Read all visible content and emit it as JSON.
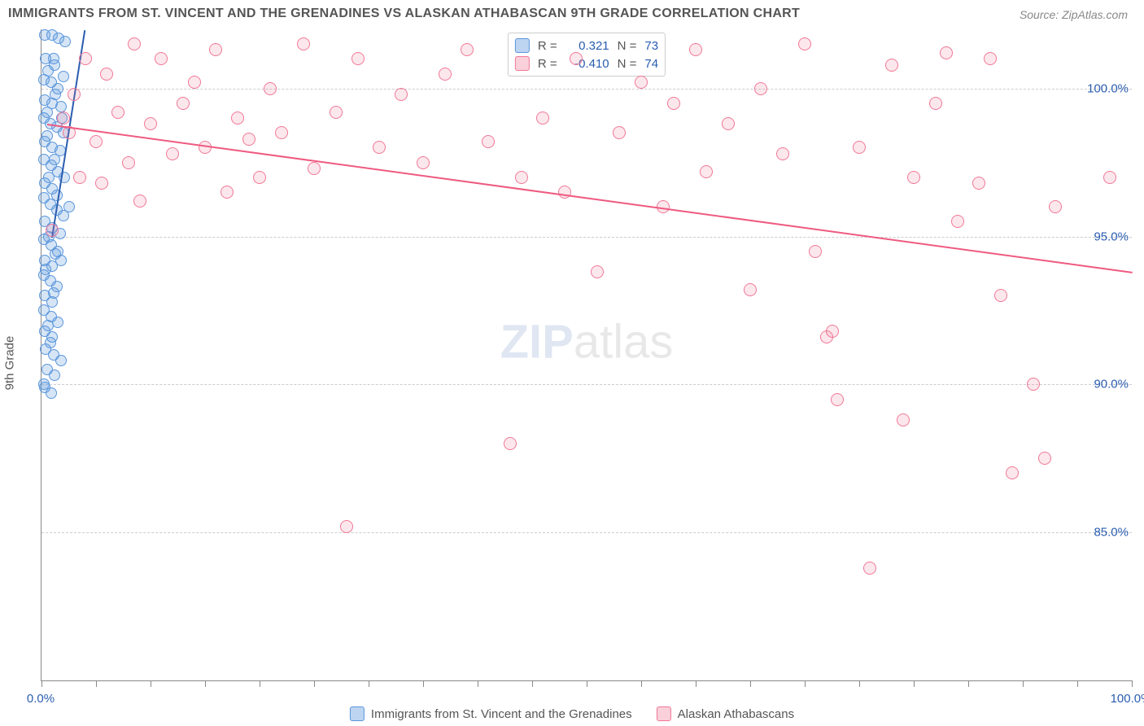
{
  "title": "IMMIGRANTS FROM ST. VINCENT AND THE GRENADINES VS ALASKAN ATHABASCAN 9TH GRADE CORRELATION CHART",
  "source_prefix": "Source: ",
  "source": "ZipAtlas.com",
  "yaxis_title": "9th Grade",
  "watermark_a": "ZIP",
  "watermark_b": "atlas",
  "chart": {
    "type": "scatter",
    "xlim": [
      0,
      100
    ],
    "ylim": [
      80,
      102
    ],
    "x_ticks": [
      0,
      50,
      100
    ],
    "x_tick_labels": [
      "0.0%",
      "",
      "100.0%"
    ],
    "y_ticks": [
      85,
      90,
      95,
      100
    ],
    "y_tick_labels": [
      "85.0%",
      "90.0%",
      "95.0%",
      "100.0%"
    ],
    "x_minor_ticks": [
      0,
      5,
      10,
      15,
      20,
      25,
      30,
      35,
      40,
      45,
      50,
      55,
      60,
      65,
      70,
      75,
      80,
      85,
      90,
      95,
      100
    ],
    "plot_bg": "#ffffff",
    "grid_color": "#cccccc",
    "axis_color": "#888888",
    "label_color": "#2a5db0",
    "title_fontsize": 16,
    "label_fontsize": 15,
    "marker_radius_blue": 7,
    "marker_radius_pink": 8
  },
  "series": [
    {
      "name": "Immigrants from St. Vincent and the Grenadines",
      "key": "blue",
      "marker_fill": "rgba(90,150,220,0.25)",
      "marker_stroke": "#5a96dc",
      "trend_color": "#2a5db0",
      "R": "0.321",
      "N": "73",
      "trend": {
        "x1": 1.0,
        "y1": 95.0,
        "x2": 4.0,
        "y2": 102.0
      },
      "points": [
        [
          0.3,
          101.8
        ],
        [
          1.0,
          101.8
        ],
        [
          1.6,
          101.7
        ],
        [
          2.2,
          101.6
        ],
        [
          0.4,
          101.0
        ],
        [
          1.1,
          101.0
        ],
        [
          0.2,
          100.3
        ],
        [
          0.9,
          100.2
        ],
        [
          1.5,
          100.0
        ],
        [
          0.3,
          99.6
        ],
        [
          1.0,
          99.5
        ],
        [
          1.8,
          99.4
        ],
        [
          0.2,
          99.0
        ],
        [
          0.8,
          98.8
        ],
        [
          1.4,
          98.7
        ],
        [
          2.0,
          98.5
        ],
        [
          0.3,
          98.2
        ],
        [
          1.0,
          98.0
        ],
        [
          1.7,
          97.9
        ],
        [
          0.2,
          97.6
        ],
        [
          0.9,
          97.4
        ],
        [
          1.5,
          97.2
        ],
        [
          2.1,
          97.0
        ],
        [
          0.3,
          96.8
        ],
        [
          1.0,
          96.6
        ],
        [
          0.2,
          96.3
        ],
        [
          0.8,
          96.1
        ],
        [
          1.4,
          95.9
        ],
        [
          2.0,
          95.7
        ],
        [
          0.3,
          95.5
        ],
        [
          1.0,
          95.3
        ],
        [
          1.7,
          95.1
        ],
        [
          0.2,
          94.9
        ],
        [
          0.9,
          94.7
        ],
        [
          1.5,
          94.5
        ],
        [
          0.3,
          94.2
        ],
        [
          1.0,
          94.0
        ],
        [
          1.8,
          94.2
        ],
        [
          0.2,
          93.7
        ],
        [
          0.8,
          93.5
        ],
        [
          1.4,
          93.3
        ],
        [
          0.3,
          93.0
        ],
        [
          1.0,
          92.8
        ],
        [
          0.2,
          92.5
        ],
        [
          0.9,
          92.3
        ],
        [
          1.5,
          92.1
        ],
        [
          0.3,
          91.8
        ],
        [
          1.0,
          91.6
        ],
        [
          0.4,
          91.2
        ],
        [
          1.1,
          91.0
        ],
        [
          0.5,
          90.5
        ],
        [
          1.2,
          90.3
        ],
        [
          0.3,
          89.9
        ],
        [
          1.8,
          90.8
        ],
        [
          2.5,
          96.0
        ],
        [
          0.6,
          100.6
        ],
        [
          1.3,
          99.8
        ],
        [
          2.0,
          100.4
        ],
        [
          0.7,
          95.0
        ],
        [
          1.4,
          96.4
        ],
        [
          0.5,
          98.4
        ],
        [
          1.2,
          97.6
        ],
        [
          0.4,
          93.9
        ],
        [
          1.1,
          93.1
        ],
        [
          0.6,
          92.0
        ],
        [
          1.3,
          94.4
        ],
        [
          0.8,
          91.4
        ],
        [
          0.2,
          90.0
        ],
        [
          0.9,
          89.7
        ],
        [
          0.5,
          99.2
        ],
        [
          1.2,
          100.8
        ],
        [
          1.9,
          99.0
        ],
        [
          0.7,
          97.0
        ]
      ]
    },
    {
      "name": "Alaskan Athabascans",
      "key": "pink",
      "marker_fill": "rgba(240,120,150,0.18)",
      "marker_stroke": "#f07896",
      "trend_color": "#ef5a80",
      "R": "-0.410",
      "N": "74",
      "trend": {
        "x1": 0.5,
        "y1": 98.8,
        "x2": 100.0,
        "y2": 93.8
      },
      "points": [
        [
          1.0,
          95.2
        ],
        [
          2.0,
          99.0
        ],
        [
          2.5,
          98.5
        ],
        [
          3.0,
          99.8
        ],
        [
          3.5,
          97.0
        ],
        [
          4.0,
          101.0
        ],
        [
          5.0,
          98.2
        ],
        [
          5.5,
          96.8
        ],
        [
          6.0,
          100.5
        ],
        [
          7.0,
          99.2
        ],
        [
          8.0,
          97.5
        ],
        [
          8.5,
          101.5
        ],
        [
          9.0,
          96.2
        ],
        [
          10.0,
          98.8
        ],
        [
          11.0,
          101.0
        ],
        [
          12.0,
          97.8
        ],
        [
          13.0,
          99.5
        ],
        [
          14.0,
          100.2
        ],
        [
          15.0,
          98.0
        ],
        [
          16.0,
          101.3
        ],
        [
          17.0,
          96.5
        ],
        [
          18.0,
          99.0
        ],
        [
          19.0,
          98.3
        ],
        [
          20.0,
          97.0
        ],
        [
          21.0,
          100.0
        ],
        [
          22.0,
          98.5
        ],
        [
          24.0,
          101.5
        ],
        [
          25.0,
          97.3
        ],
        [
          27.0,
          99.2
        ],
        [
          28.0,
          85.2
        ],
        [
          29.0,
          101.0
        ],
        [
          31.0,
          98.0
        ],
        [
          33.0,
          99.8
        ],
        [
          35.0,
          97.5
        ],
        [
          37.0,
          100.5
        ],
        [
          39.0,
          101.3
        ],
        [
          41.0,
          98.2
        ],
        [
          43.0,
          88.0
        ],
        [
          44.0,
          97.0
        ],
        [
          46.0,
          99.0
        ],
        [
          48.0,
          96.5
        ],
        [
          49.0,
          101.0
        ],
        [
          51.0,
          93.8
        ],
        [
          53.0,
          98.5
        ],
        [
          55.0,
          100.2
        ],
        [
          57.0,
          96.0
        ],
        [
          58.0,
          99.5
        ],
        [
          60.0,
          101.3
        ],
        [
          61.0,
          97.2
        ],
        [
          63.0,
          98.8
        ],
        [
          65.0,
          93.2
        ],
        [
          66.0,
          100.0
        ],
        [
          68.0,
          97.8
        ],
        [
          70.0,
          101.5
        ],
        [
          71.0,
          94.5
        ],
        [
          72.0,
          91.6
        ],
        [
          72.5,
          91.8
        ],
        [
          73.0,
          89.5
        ],
        [
          75.0,
          98.0
        ],
        [
          76.0,
          83.8
        ],
        [
          78.0,
          100.8
        ],
        [
          79.0,
          88.8
        ],
        [
          80.0,
          97.0
        ],
        [
          82.0,
          99.5
        ],
        [
          83.0,
          101.2
        ],
        [
          84.0,
          95.5
        ],
        [
          86.0,
          96.8
        ],
        [
          87.0,
          101.0
        ],
        [
          88.0,
          93.0
        ],
        [
          89.0,
          87.0
        ],
        [
          91.0,
          90.0
        ],
        [
          92.0,
          87.5
        ],
        [
          93.0,
          96.0
        ],
        [
          98.0,
          97.0
        ]
      ]
    }
  ],
  "legend_bottom": [
    {
      "swatch": "blue",
      "label": "Immigrants from St. Vincent and the Grenadines"
    },
    {
      "swatch": "pink",
      "label": "Alaskan Athabascans"
    }
  ],
  "stats_labels": {
    "R": "R =",
    "N": "N ="
  }
}
